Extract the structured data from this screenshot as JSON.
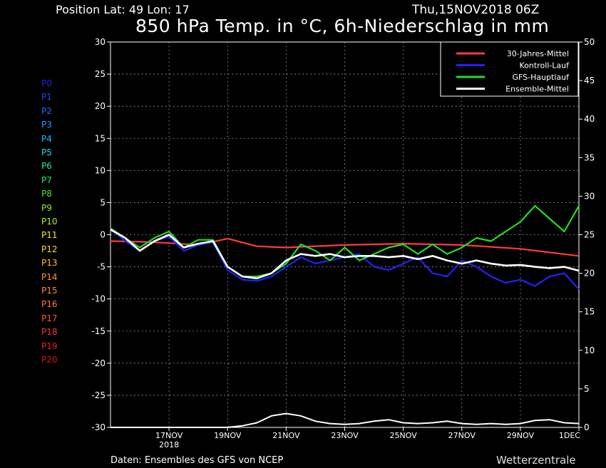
{
  "header": {
    "position": "Position   Lat: 49 Lon: 17",
    "date": "Thu,15NOV2018 06Z"
  },
  "footer": {
    "source": "Daten: Ensembles des GFS von NCEP",
    "brand": "Wetterzentrale"
  },
  "members": [
    {
      "label": "P0",
      "color": "#2222ff"
    },
    {
      "label": "P1",
      "color": "#2244ff"
    },
    {
      "label": "P2",
      "color": "#2266ff"
    },
    {
      "label": "P3",
      "color": "#2299ff"
    },
    {
      "label": "P4",
      "color": "#22bbff"
    },
    {
      "label": "P5",
      "color": "#22ddee"
    },
    {
      "label": "P6",
      "color": "#22ee99"
    },
    {
      "label": "P7",
      "color": "#22ee66"
    },
    {
      "label": "P8",
      "color": "#44ee33"
    },
    {
      "label": "P9",
      "color": "#88ee22"
    },
    {
      "label": "P10",
      "color": "#bbee22"
    },
    {
      "label": "P11",
      "color": "#eeee22"
    },
    {
      "label": "P12",
      "color": "#ffdd22"
    },
    {
      "label": "P13",
      "color": "#ffbb22"
    },
    {
      "label": "P14",
      "color": "#ff9922"
    },
    {
      "label": "P15",
      "color": "#ff8833"
    },
    {
      "label": "P16",
      "color": "#ff7733"
    },
    {
      "label": "P17",
      "color": "#ff5533"
    },
    {
      "label": "P18",
      "color": "#ff3333"
    },
    {
      "label": "P19",
      "color": "#ee2222"
    },
    {
      "label": "P20",
      "color": "#dd1111"
    }
  ],
  "chart_data": {
    "type": "line",
    "title": "850 hPa Temp. in °C, 6h-Niederschlag in mm",
    "ylabel": "",
    "y2label": "",
    "ylim": [
      -30,
      30
    ],
    "y2lim": [
      0,
      50
    ],
    "yticks": [
      30,
      25,
      20,
      15,
      10,
      5,
      0,
      -5,
      -10,
      -15,
      -20,
      -25,
      -30
    ],
    "y2ticks": [
      50,
      45,
      40,
      35,
      30,
      25,
      20,
      15,
      10,
      5,
      0
    ],
    "xlim": [
      0,
      64
    ],
    "xticks": [
      {
        "x": 8,
        "label": "17NOV",
        "sub": "2018"
      },
      {
        "x": 16,
        "label": "19NOV",
        "sub": ""
      },
      {
        "x": 24,
        "label": "21NOV",
        "sub": ""
      },
      {
        "x": 32,
        "label": "23NOV",
        "sub": ""
      },
      {
        "x": 40,
        "label": "25NOV",
        "sub": ""
      },
      {
        "x": 48,
        "label": "27NOV",
        "sub": ""
      },
      {
        "x": 56,
        "label": "29NOV",
        "sub": ""
      },
      {
        "x": 64,
        "label": "1DEC",
        "sub": ""
      }
    ],
    "grid": true,
    "legend_position": "top-right",
    "series": [
      {
        "name": "30-Jahres-Mittel",
        "color": "#ff3b3b",
        "width": 2.2,
        "x": [
          0,
          4,
          8,
          12,
          16,
          20,
          24,
          32,
          40,
          48,
          56,
          64
        ],
        "values": [
          -1.0,
          -1.1,
          -1.3,
          -1.6,
          -0.6,
          -1.8,
          -2.0,
          -1.6,
          -1.4,
          -1.6,
          -2.2,
          -3.3
        ]
      },
      {
        "name": "Kontroll-Lauf",
        "color": "#2222ff",
        "width": 2.2,
        "x": [
          0,
          2,
          4,
          6,
          8,
          10,
          12,
          14,
          16,
          18,
          20,
          22,
          24,
          26,
          28,
          30,
          32,
          34,
          36,
          38,
          40,
          42,
          44,
          46,
          48,
          50,
          52,
          54,
          56,
          58,
          60,
          62,
          64
        ],
        "values": [
          1.0,
          -1.0,
          -2.5,
          -1.0,
          -0.3,
          -2.5,
          -1.6,
          -1.2,
          -5.5,
          -7.0,
          -7.2,
          -6.5,
          -5.0,
          -3.5,
          -4.5,
          -4.0,
          -3.5,
          -3.0,
          -5.0,
          -5.5,
          -4.5,
          -3.5,
          -6.0,
          -6.5,
          -4.0,
          -5.0,
          -6.5,
          -7.5,
          -7.0,
          -8.0,
          -6.5,
          -6.0,
          -8.5
        ]
      },
      {
        "name": "GFS-Hauptlauf",
        "color": "#22dd22",
        "width": 2.2,
        "x": [
          0,
          2,
          4,
          6,
          8,
          10,
          12,
          14,
          16,
          18,
          20,
          22,
          24,
          26,
          28,
          30,
          32,
          34,
          36,
          38,
          40,
          42,
          44,
          46,
          48,
          50,
          52,
          54,
          56,
          58,
          60,
          62,
          64
        ],
        "values": [
          1.0,
          -0.5,
          -2.0,
          -0.5,
          0.5,
          -2.0,
          -0.8,
          -0.8,
          -5.0,
          -6.5,
          -6.5,
          -6.0,
          -4.5,
          -1.5,
          -2.5,
          -4.0,
          -2.0,
          -4.0,
          -3.0,
          -2.0,
          -1.5,
          -3.0,
          -1.5,
          -3.0,
          -2.0,
          -0.5,
          -1.0,
          0.5,
          2.0,
          4.5,
          2.5,
          0.5,
          4.5
        ]
      },
      {
        "name": "Ensemble-Mittel",
        "color": "#ffffff",
        "width": 2.6,
        "x": [
          0,
          2,
          4,
          6,
          8,
          10,
          12,
          14,
          16,
          18,
          20,
          22,
          24,
          26,
          28,
          30,
          32,
          34,
          36,
          38,
          40,
          42,
          44,
          46,
          48,
          50,
          52,
          54,
          56,
          58,
          60,
          62,
          64
        ],
        "values": [
          0.8,
          -0.5,
          -2.5,
          -1.0,
          0.0,
          -2.0,
          -1.4,
          -1.0,
          -5.0,
          -6.5,
          -6.8,
          -6.0,
          -4.0,
          -3.0,
          -3.3,
          -3.0,
          -3.5,
          -3.3,
          -3.3,
          -3.5,
          -3.3,
          -3.8,
          -3.3,
          -4.0,
          -4.5,
          -4.0,
          -4.5,
          -4.8,
          -4.7,
          -5.0,
          -5.2,
          -5.0,
          -5.6
        ]
      }
    ],
    "precip_series": [
      {
        "name": "Ensemble-Mittel",
        "color": "#ffffff",
        "x": [
          0,
          16,
          18,
          20,
          22,
          24,
          26,
          28,
          30,
          32,
          34,
          36,
          38,
          40,
          42,
          44,
          46,
          48,
          50,
          52,
          54,
          56,
          58,
          60,
          62,
          64
        ],
        "values": [
          0,
          0,
          0.2,
          0.6,
          1.5,
          1.8,
          1.5,
          0.8,
          0.5,
          0.4,
          0.5,
          0.8,
          1.0,
          0.6,
          0.5,
          0.6,
          0.8,
          0.5,
          0.4,
          0.5,
          0.4,
          0.5,
          0.9,
          1.0,
          0.6,
          0.5
        ]
      }
    ]
  }
}
